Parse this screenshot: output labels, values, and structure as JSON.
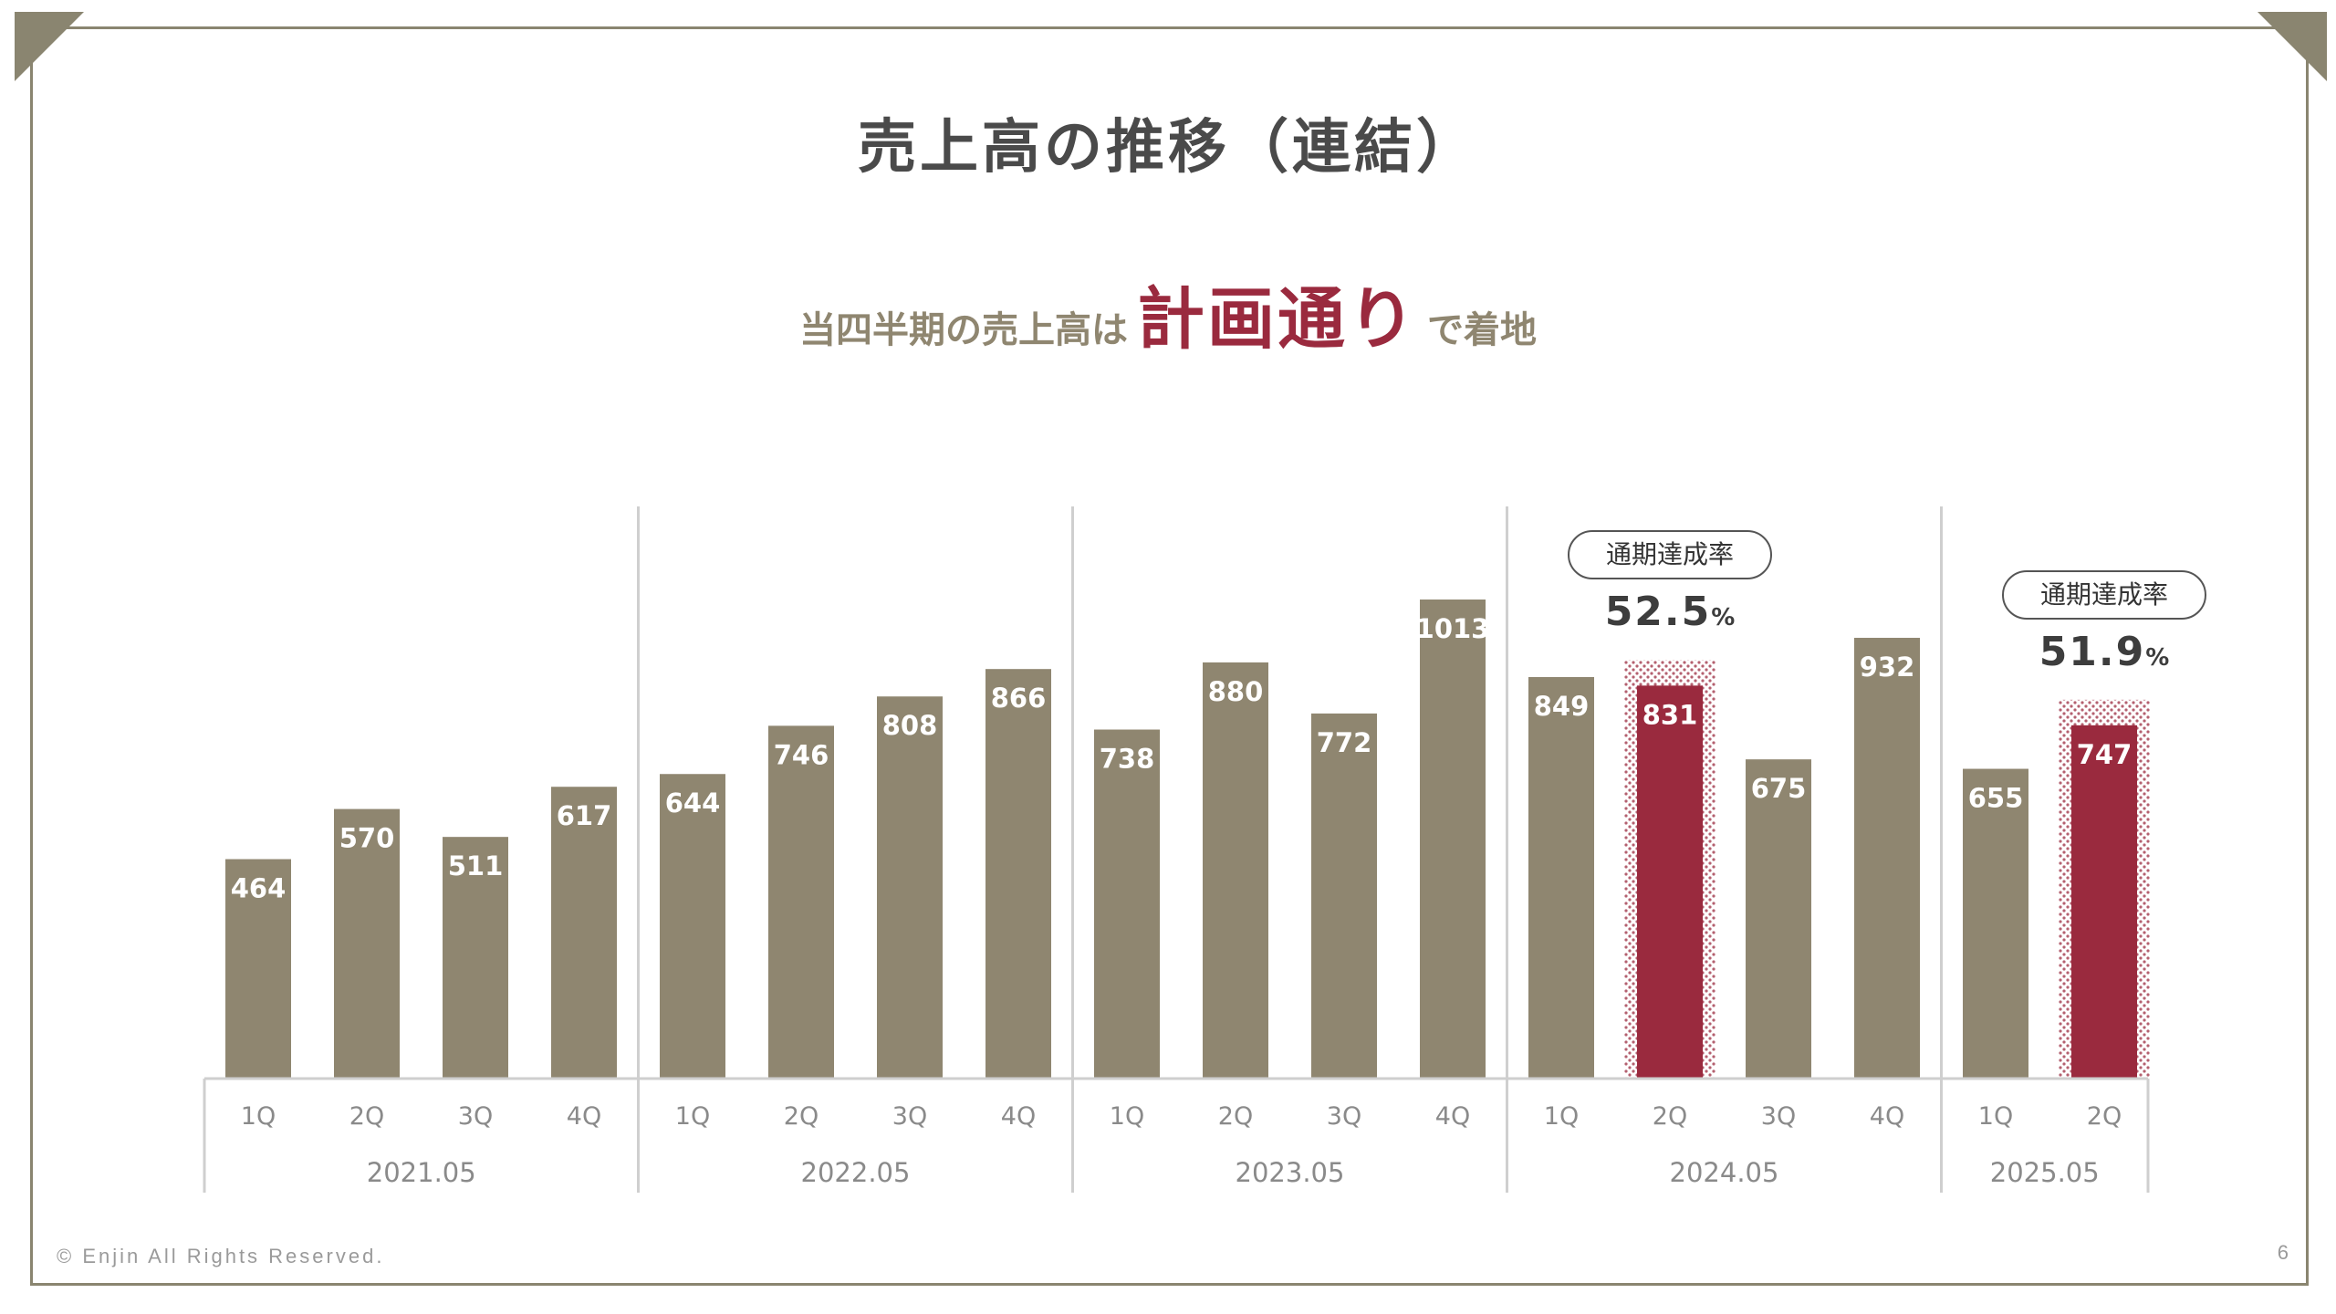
{
  "title": "売上高の推移（連結）",
  "subtitle": {
    "prefix": "当四半期の売上高は",
    "highlight": "計画通り",
    "suffix": "で着地"
  },
  "footer": "© Enjin All Rights Reserved.",
  "page_number": "6",
  "colors": {
    "bar": "#8f8670",
    "highlight": "#9a2a3e",
    "frame": "#8a8570",
    "axis": "#cfcfcf",
    "tick_text": "#8a8a8a"
  },
  "annotations": [
    {
      "year": "2024.05",
      "quarter": "2Q",
      "label": "通期達成率",
      "value": "52.5",
      "unit": "%"
    },
    {
      "year": "2025.05",
      "quarter": "2Q",
      "label": "通期達成率",
      "value": "51.9",
      "unit": "%"
    }
  ],
  "chart_data": {
    "type": "bar",
    "title": "",
    "xlabel": "",
    "ylabel": "",
    "ylim": [
      0,
      1013
    ],
    "grid": false,
    "legend": "none",
    "groups": [
      {
        "year": "2021.05",
        "categories": [
          "1Q",
          "2Q",
          "3Q",
          "4Q"
        ],
        "values": [
          464,
          570,
          511,
          617
        ],
        "highlight": [
          false,
          false,
          false,
          false
        ]
      },
      {
        "year": "2022.05",
        "categories": [
          "1Q",
          "2Q",
          "3Q",
          "4Q"
        ],
        "values": [
          644,
          746,
          808,
          866
        ],
        "highlight": [
          false,
          false,
          false,
          false
        ]
      },
      {
        "year": "2023.05",
        "categories": [
          "1Q",
          "2Q",
          "3Q",
          "4Q"
        ],
        "values": [
          738,
          880,
          772,
          1013
        ],
        "highlight": [
          false,
          false,
          false,
          false
        ]
      },
      {
        "year": "2024.05",
        "categories": [
          "1Q",
          "2Q",
          "3Q",
          "4Q"
        ],
        "values": [
          849,
          831,
          675,
          932
        ],
        "highlight": [
          false,
          true,
          false,
          false
        ]
      },
      {
        "year": "2025.05",
        "categories": [
          "1Q",
          "2Q"
        ],
        "values": [
          655,
          747
        ],
        "highlight": [
          false,
          true
        ]
      }
    ]
  }
}
